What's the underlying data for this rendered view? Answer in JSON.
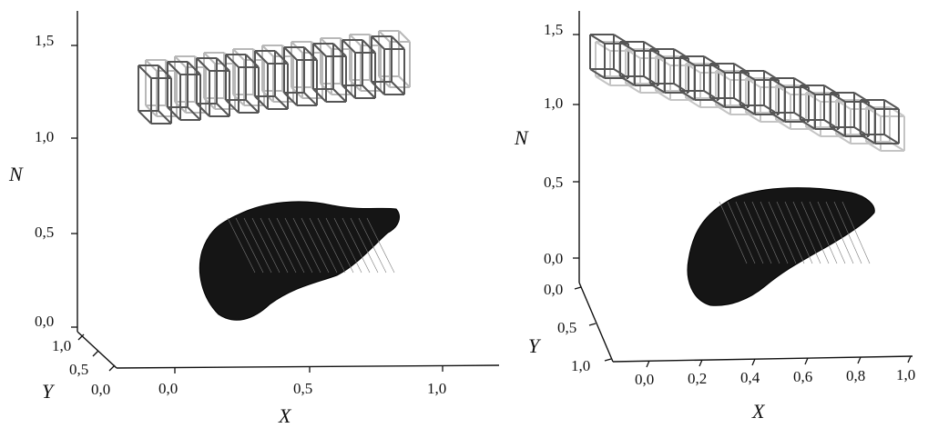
{
  "panels": [
    {
      "name": "left",
      "axes": {
        "n_label": "N",
        "x_label": "X",
        "y_label": "Y",
        "n_ticks": [
          "1,5",
          "1,0",
          "0,5",
          "0,0"
        ],
        "x_ticks": [
          "0,0",
          "0,5",
          "1,0"
        ],
        "y_ticks": [
          "1,0",
          "0,5",
          "0,0"
        ]
      },
      "colors": {
        "cube_dark": "#555555",
        "cube_light": "#b8b8b8",
        "mesh": "#151515"
      }
    },
    {
      "name": "right",
      "axes": {
        "n_label": "N",
        "x_label": "X",
        "y_label": "Y",
        "n_ticks": [
          "1,5",
          "1,0",
          "0,5",
          "0,0"
        ],
        "x_ticks": [
          "0,0",
          "0,2",
          "0,4",
          "0,6",
          "0,8",
          "1,0"
        ],
        "y_ticks": [
          "0,0",
          "0,5",
          "1,0"
        ]
      },
      "colors": {
        "cube_dark": "#555555",
        "cube_light": "#c4c4c4",
        "mesh": "#151515"
      }
    }
  ]
}
